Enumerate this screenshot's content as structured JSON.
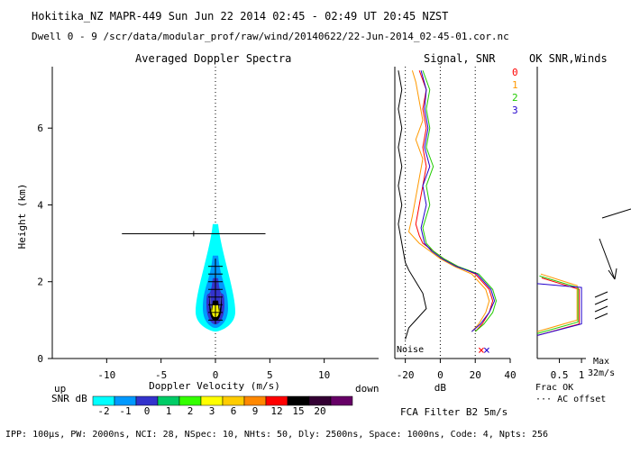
{
  "header": {
    "line1": "Hokitika_NZ  MAPR-449  Sun Jun 22 2014 02:45 - 02:49 UT 20:45 NZST",
    "line2": "Dwell  0 - 9   /scr/data/modular_prof/raw/wind/20140622/22-Jun-2014_02-45-01.cor.nc"
  },
  "footer": {
    "fca": "FCA Filter B2  5m/s",
    "params": "IPP: 100μs,  PW: 2000ns,  NCI: 28,  NSpec: 10,  NHts: 50,  Dly: 2500ns,  Space: 1000ns,  Code: 4,  Npts: 256"
  },
  "colors": {
    "snr0": "#ff0000",
    "snr1": "#ff9900",
    "snr2": "#22cc00",
    "snr3": "#2200cc",
    "noise": "#000000",
    "colorbar": [
      "#00ffff",
      "#0099ff",
      "#3333cc",
      "#00cc66",
      "#33ff00",
      "#ffff00",
      "#ffcc00",
      "#ff8800",
      "#ff0000",
      "#000000",
      "#330033",
      "#660066"
    ]
  },
  "chart_data": [
    {
      "type": "heatmap",
      "title": "Averaged Doppler Spectra",
      "xlabel": "Doppler Velocity (m/s)",
      "ylabel": "Height (km)",
      "xlim": [
        -15,
        15
      ],
      "ylim": [
        0,
        7.6
      ],
      "x_ticks": [
        -10,
        -5,
        0,
        5,
        10
      ],
      "y_ticks": [
        0,
        2,
        4,
        6
      ],
      "x_end_labels": {
        "left": "up",
        "right": "down"
      },
      "colorbar": {
        "label": "SNR dB",
        "ticks": [
          -2,
          -1,
          0,
          1,
          2,
          3,
          6,
          9,
          12,
          15,
          20
        ]
      },
      "error_bars": [
        {
          "height": 3.25,
          "center": -2.0,
          "lo": -8.6,
          "hi": 4.6
        }
      ],
      "echo_region": {
        "height_min": 0.7,
        "height_max": 3.5,
        "velocity_center": 0
      }
    },
    {
      "type": "line",
      "title": "Signal, SNR",
      "xlabel": "dB",
      "x_ticks": [
        -20,
        0,
        20,
        40
      ],
      "xlim": [
        -26,
        40
      ],
      "ylim": [
        0,
        7.6
      ],
      "legend": [
        "0",
        "1",
        "2",
        "3"
      ],
      "annotation": "Noise",
      "series": [
        {
          "name": "0",
          "points": [
            [
              20,
              0.7
            ],
            [
              24,
              0.9
            ],
            [
              28,
              1.2
            ],
            [
              30,
              1.5
            ],
            [
              28,
              1.8
            ],
            [
              20,
              2.2
            ],
            [
              10,
              2.4
            ],
            [
              2,
              2.6
            ],
            [
              -4,
              2.8
            ],
            [
              -10,
              3.0
            ],
            [
              -12,
              3.2
            ],
            [
              -14,
              3.5
            ],
            [
              -12,
              4.0
            ],
            [
              -10,
              4.5
            ],
            [
              -8,
              5.0
            ],
            [
              -10,
              5.5
            ],
            [
              -8,
              6.0
            ],
            [
              -10,
              6.5
            ],
            [
              -8,
              7.0
            ],
            [
              -12,
              7.5
            ]
          ]
        },
        {
          "name": "1",
          "points": [
            [
              18,
              0.7
            ],
            [
              22,
              0.9
            ],
            [
              26,
              1.2
            ],
            [
              28,
              1.5
            ],
            [
              26,
              1.8
            ],
            [
              18,
              2.2
            ],
            [
              8,
              2.4
            ],
            [
              0,
              2.6
            ],
            [
              -6,
              2.8
            ],
            [
              -12,
              3.0
            ],
            [
              -18,
              3.3
            ],
            [
              -16,
              3.7
            ],
            [
              -14,
              4.2
            ],
            [
              -12,
              4.7
            ],
            [
              -10,
              5.2
            ],
            [
              -14,
              5.7
            ],
            [
              -10,
              6.2
            ],
            [
              -12,
              6.7
            ],
            [
              -14,
              7.2
            ],
            [
              -16,
              7.5
            ]
          ]
        },
        {
          "name": "2",
          "points": [
            [
              20,
              0.7
            ],
            [
              25,
              0.9
            ],
            [
              30,
              1.2
            ],
            [
              32,
              1.5
            ],
            [
              30,
              1.8
            ],
            [
              22,
              2.2
            ],
            [
              10,
              2.4
            ],
            [
              2,
              2.6
            ],
            [
              -4,
              2.8
            ],
            [
              -8,
              3.0
            ],
            [
              -10,
              3.4
            ],
            [
              -6,
              4.0
            ],
            [
              -8,
              4.5
            ],
            [
              -4,
              5.0
            ],
            [
              -8,
              5.5
            ],
            [
              -6,
              6.0
            ],
            [
              -8,
              6.5
            ],
            [
              -6,
              7.0
            ],
            [
              -10,
              7.5
            ]
          ]
        },
        {
          "name": "3",
          "points": [
            [
              18,
              0.7
            ],
            [
              23,
              0.9
            ],
            [
              28,
              1.2
            ],
            [
              31,
              1.5
            ],
            [
              29,
              1.8
            ],
            [
              21,
              2.2
            ],
            [
              9,
              2.4
            ],
            [
              1,
              2.6
            ],
            [
              -5,
              2.8
            ],
            [
              -9,
              3.0
            ],
            [
              -11,
              3.4
            ],
            [
              -8,
              4.0
            ],
            [
              -10,
              4.5
            ],
            [
              -6,
              5.0
            ],
            [
              -9,
              5.5
            ],
            [
              -7,
              6.0
            ],
            [
              -9,
              6.5
            ],
            [
              -8,
              7.0
            ],
            [
              -11,
              7.5
            ]
          ]
        },
        {
          "name": "Noise",
          "points": [
            [
              -20,
              0.5
            ],
            [
              -18,
              0.8
            ],
            [
              -14,
              1.0
            ],
            [
              -8,
              1.3
            ],
            [
              -10,
              1.7
            ],
            [
              -14,
              2.0
            ],
            [
              -18,
              2.3
            ],
            [
              -20,
              2.5
            ],
            [
              -22,
              3.0
            ],
            [
              -24,
              3.5
            ],
            [
              -22,
              4.0
            ],
            [
              -24,
              4.5
            ],
            [
              -22,
              5.0
            ],
            [
              -24,
              5.5
            ],
            [
              -22,
              6.0
            ],
            [
              -24,
              6.5
            ],
            [
              -22,
              7.0
            ],
            [
              -24,
              7.5
            ]
          ]
        }
      ]
    },
    {
      "type": "line",
      "title": "OK SNR,Winds",
      "xlabel": "Frac OK",
      "x_ticks": [
        0.5,
        1
      ],
      "xlim": [
        0,
        1.1
      ],
      "ylim": [
        0,
        7.6
      ],
      "annotations": [
        "Max",
        "32m/s",
        "··· AC offset"
      ],
      "series": [
        {
          "name": "0",
          "points": [
            [
              0,
              0.6
            ],
            [
              0.95,
              0.9
            ],
            [
              0.95,
              1.8
            ],
            [
              0.1,
              2.1
            ]
          ]
        },
        {
          "name": "1",
          "points": [
            [
              0,
              0.7
            ],
            [
              0.9,
              1.0
            ],
            [
              0.9,
              1.9
            ],
            [
              0.08,
              2.2
            ]
          ]
        },
        {
          "name": "2",
          "points": [
            [
              0,
              0.65
            ],
            [
              0.92,
              0.95
            ],
            [
              0.92,
              1.85
            ],
            [
              0.05,
              2.15
            ]
          ]
        },
        {
          "name": "3",
          "points": [
            [
              0,
              0.6
            ],
            [
              1.0,
              0.9
            ],
            [
              1.0,
              1.85
            ],
            [
              0,
              1.95
            ]
          ]
        }
      ]
    }
  ]
}
